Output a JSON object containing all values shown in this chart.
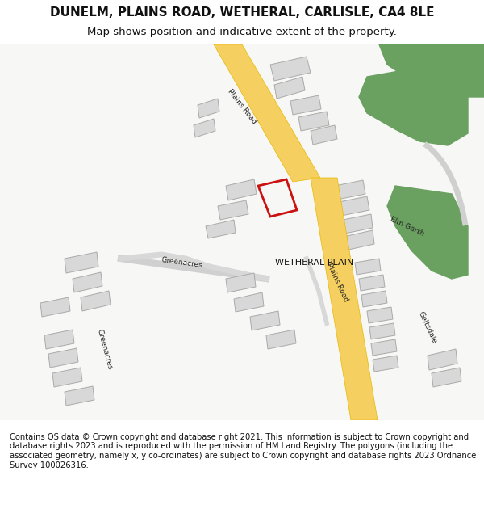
{
  "title_line1": "DUNELM, PLAINS ROAD, WETHERAL, CARLISLE, CA4 8LE",
  "title_line2": "Map shows position and indicative extent of the property.",
  "copyright_text": "Contains OS data © Crown copyright and database right 2021. This information is subject to Crown copyright and database rights 2023 and is reproduced with the permission of HM Land Registry. The polygons (including the associated geometry, namely x, y co-ordinates) are subject to Crown copyright and database rights 2023 Ordnance Survey 100026316.",
  "bg_color": "#f5f5f0",
  "map_bg": "#f7f7f5",
  "road_color_yellow": "#f5d060",
  "road_color_center": "#f0c030",
  "road_edge_color": "#e8b800",
  "building_color": "#d8d8d8",
  "building_edge": "#aaaaaa",
  "green_color": "#6aa060",
  "red_plot_color": "#cc1111",
  "road_label_color": "#333333",
  "place_label_color": "#222222",
  "figsize": [
    6.0,
    6.25
  ],
  "dpi": 100
}
